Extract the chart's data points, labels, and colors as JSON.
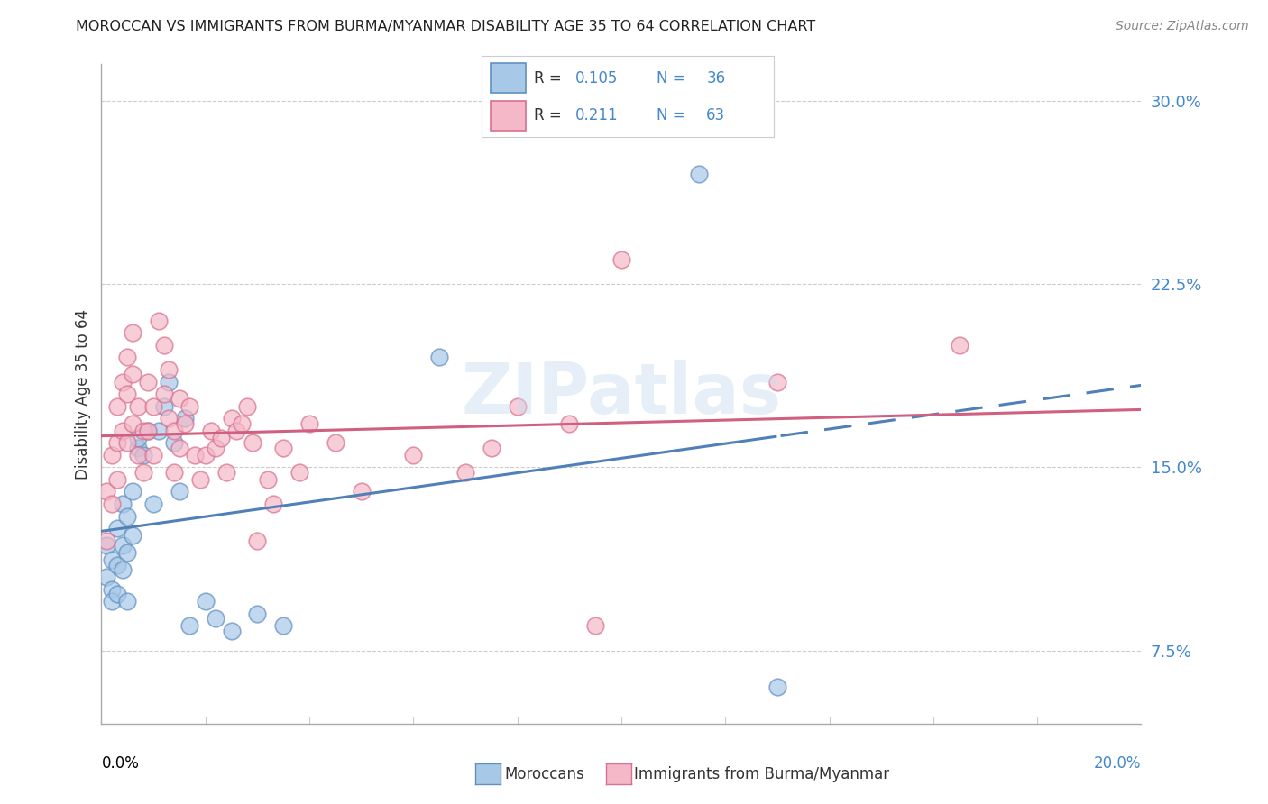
{
  "title": "MOROCCAN VS IMMIGRANTS FROM BURMA/MYANMAR DISABILITY AGE 35 TO 64 CORRELATION CHART",
  "source": "Source: ZipAtlas.com",
  "ylabel": "Disability Age 35 to 64",
  "y_ticks": [
    0.075,
    0.15,
    0.225,
    0.3
  ],
  "y_tick_labels": [
    "7.5%",
    "15.0%",
    "22.5%",
    "30.0%"
  ],
  "x_min": 0.0,
  "x_max": 0.2,
  "y_min": 0.045,
  "y_max": 0.315,
  "blue_color": "#A8C8E8",
  "pink_color": "#F4B8C8",
  "blue_edge_color": "#6090C0",
  "pink_edge_color": "#D87090",
  "blue_line_color": "#5080B8",
  "pink_line_color": "#D06080",
  "watermark": "ZIPatlas",
  "moroccan_x": [
    0.001,
    0.001,
    0.002,
    0.002,
    0.002,
    0.003,
    0.003,
    0.003,
    0.004,
    0.004,
    0.004,
    0.005,
    0.005,
    0.005,
    0.006,
    0.006,
    0.007,
    0.007,
    0.008,
    0.009,
    0.01,
    0.011,
    0.012,
    0.013,
    0.014,
    0.015,
    0.016,
    0.017,
    0.02,
    0.022,
    0.025,
    0.03,
    0.035,
    0.065,
    0.115,
    0.13
  ],
  "moroccan_y": [
    0.118,
    0.105,
    0.112,
    0.1,
    0.095,
    0.125,
    0.11,
    0.098,
    0.135,
    0.118,
    0.108,
    0.13,
    0.115,
    0.095,
    0.14,
    0.122,
    0.158,
    0.162,
    0.155,
    0.165,
    0.135,
    0.165,
    0.175,
    0.185,
    0.16,
    0.14,
    0.17,
    0.085,
    0.095,
    0.088,
    0.083,
    0.09,
    0.085,
    0.195,
    0.27,
    0.06
  ],
  "burma_x": [
    0.001,
    0.001,
    0.002,
    0.002,
    0.003,
    0.003,
    0.003,
    0.004,
    0.004,
    0.005,
    0.005,
    0.005,
    0.006,
    0.006,
    0.006,
    0.007,
    0.007,
    0.008,
    0.008,
    0.009,
    0.009,
    0.01,
    0.01,
    0.011,
    0.012,
    0.012,
    0.013,
    0.013,
    0.014,
    0.014,
    0.015,
    0.015,
    0.016,
    0.017,
    0.018,
    0.019,
    0.02,
    0.021,
    0.022,
    0.023,
    0.024,
    0.025,
    0.026,
    0.027,
    0.028,
    0.029,
    0.03,
    0.032,
    0.033,
    0.035,
    0.038,
    0.04,
    0.045,
    0.05,
    0.06,
    0.07,
    0.075,
    0.08,
    0.09,
    0.095,
    0.1,
    0.13,
    0.165
  ],
  "burma_y": [
    0.14,
    0.12,
    0.155,
    0.135,
    0.175,
    0.16,
    0.145,
    0.185,
    0.165,
    0.195,
    0.18,
    0.16,
    0.205,
    0.188,
    0.168,
    0.175,
    0.155,
    0.165,
    0.148,
    0.185,
    0.165,
    0.175,
    0.155,
    0.21,
    0.2,
    0.18,
    0.19,
    0.17,
    0.165,
    0.148,
    0.178,
    0.158,
    0.168,
    0.175,
    0.155,
    0.145,
    0.155,
    0.165,
    0.158,
    0.162,
    0.148,
    0.17,
    0.165,
    0.168,
    0.175,
    0.16,
    0.12,
    0.145,
    0.135,
    0.158,
    0.148,
    0.168,
    0.16,
    0.14,
    0.155,
    0.148,
    0.158,
    0.175,
    0.168,
    0.085,
    0.235,
    0.185,
    0.2
  ]
}
